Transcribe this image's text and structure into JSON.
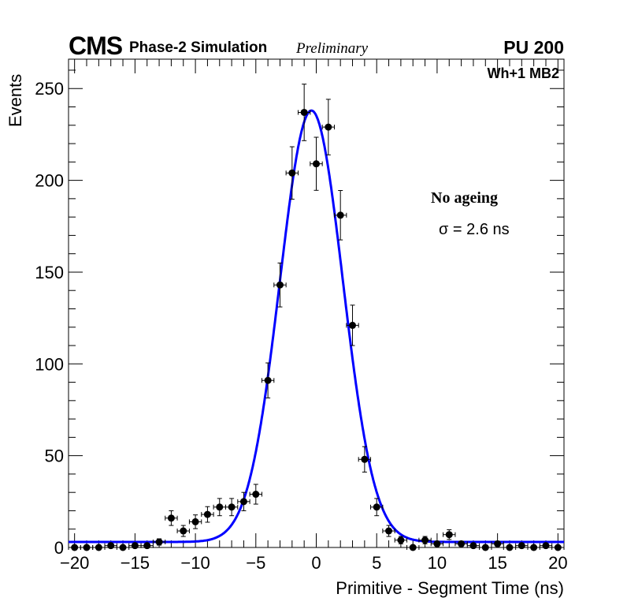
{
  "chart_data": {
    "type": "scatter",
    "title": "",
    "header": {
      "experiment": "CMS",
      "subtitle": "Phase-2 Simulation",
      "status": "Preliminary",
      "pileup": "PU 200"
    },
    "region_label": "Wh+1 MB2",
    "annotations": {
      "condition": "No ageing",
      "sigma": "σ = 2.6 ns"
    },
    "xlabel": "Primitive - Segment Time (ns)",
    "ylabel": "Events",
    "xlim": [
      -20.5,
      20.5
    ],
    "ylim": [
      0,
      266
    ],
    "xticks": [
      -20,
      -15,
      -10,
      -5,
      0,
      5,
      10,
      15,
      20
    ],
    "xtick_labels": [
      "−20",
      "−15",
      "−10",
      "−5",
      "0",
      "5",
      "10",
      "15",
      "20"
    ],
    "yticks": [
      0,
      50,
      100,
      150,
      200,
      250
    ],
    "ytick_labels": [
      "0",
      "50",
      "100",
      "150",
      "200",
      "250"
    ],
    "x": [
      -20,
      -19,
      -18,
      -17,
      -16,
      -15,
      -14,
      -13,
      -12,
      -11,
      -10,
      -9,
      -8,
      -7,
      -6,
      -5,
      -4,
      -3,
      -2,
      -1,
      0,
      1,
      2,
      3,
      4,
      5,
      6,
      7,
      8,
      9,
      10,
      11,
      12,
      13,
      14,
      15,
      16,
      17,
      18,
      19,
      20
    ],
    "y": [
      0,
      0,
      0,
      1,
      0,
      1,
      1,
      3,
      16,
      9,
      14,
      18,
      22,
      22,
      25,
      29,
      91,
      143,
      204,
      237,
      209,
      229,
      181,
      121,
      48,
      22,
      9,
      4,
      0,
      4,
      2,
      7,
      2,
      1,
      0,
      2,
      0,
      1,
      0,
      1,
      0
    ],
    "fit": {
      "type": "gaussian+constant",
      "amplitude": 235,
      "mean": -0.4,
      "sigma": 2.6,
      "constant": 3
    },
    "colors": {
      "points": "#000000",
      "fit": "#0000ff"
    }
  }
}
